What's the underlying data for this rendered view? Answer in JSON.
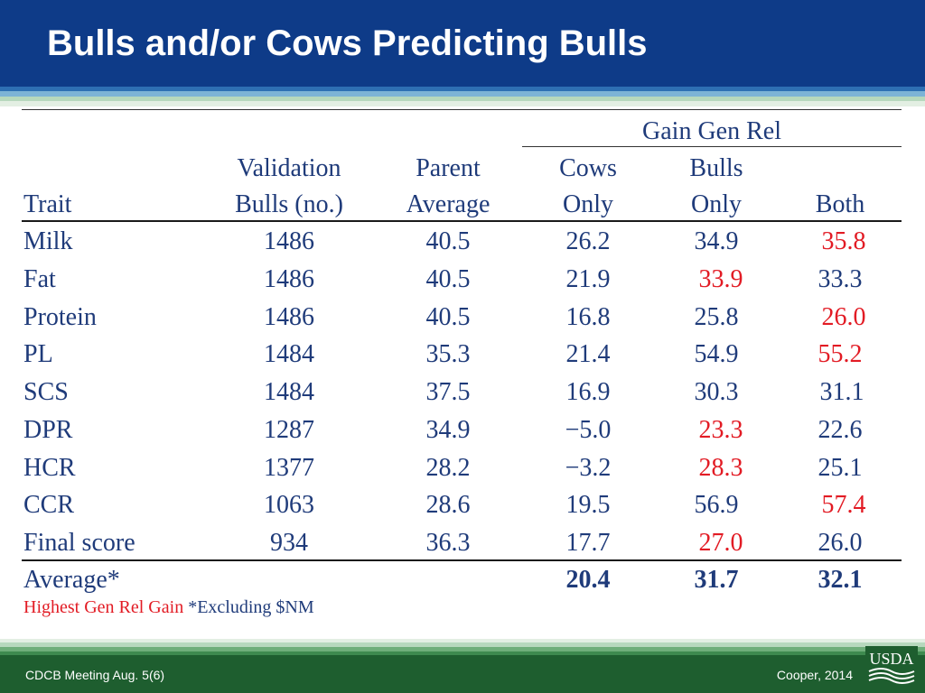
{
  "slide": {
    "title": "Bulls and/or Cows Predicting Bulls",
    "colors": {
      "title_bar": "#0e3b88",
      "highlight": "#e21b24",
      "text": "#1f3b7a",
      "footer": "#1e5e2f"
    }
  },
  "table": {
    "group_header": "Gain Gen Rel",
    "headers": {
      "trait": "Trait",
      "validation_line1": "Validation",
      "validation_line2": "Bulls (no.)",
      "parent_line1": "Parent",
      "parent_line2": "Average",
      "cows_line1": "Cows",
      "cows_line2": "Only",
      "bulls_line1": "Bulls",
      "bulls_line2": "Only",
      "both": "Both"
    },
    "rows": [
      {
        "trait": "Milk",
        "bulls": "1486",
        "parent": "40.5",
        "cows_only": "26.2",
        "bulls_only": "34.9",
        "both": "35.8",
        "highlight": "both"
      },
      {
        "trait": "Fat",
        "bulls": "1486",
        "parent": "40.5",
        "cows_only": "21.9",
        "bulls_only": "33.9",
        "both": "33.3",
        "highlight": "bulls_only"
      },
      {
        "trait": "Protein",
        "bulls": "1486",
        "parent": "40.5",
        "cows_only": "16.8",
        "bulls_only": "25.8",
        "both": "26.0",
        "highlight": "both"
      },
      {
        "trait": "PL",
        "bulls": "1484",
        "parent": "35.3",
        "cows_only": "21.4",
        "bulls_only": "54.9",
        "both": "55.2",
        "highlight": "both"
      },
      {
        "trait": "SCS",
        "bulls": "1484",
        "parent": "37.5",
        "cows_only": "16.9",
        "bulls_only": "30.3",
        "both": "31.1",
        "highlight": "none"
      },
      {
        "trait": "DPR",
        "bulls": "1287",
        "parent": "34.9",
        "cows_only": "−5.0",
        "bulls_only": "23.3",
        "both": "22.6",
        "highlight": "bulls_only"
      },
      {
        "trait": "HCR",
        "bulls": "1377",
        "parent": "28.2",
        "cows_only": "−3.2",
        "bulls_only": "28.3",
        "both": "25.1",
        "highlight": "bulls_only"
      },
      {
        "trait": "CCR",
        "bulls": "1063",
        "parent": "28.6",
        "cows_only": "19.5",
        "bulls_only": "56.9",
        "both": "57.4",
        "highlight": "both"
      },
      {
        "trait": "Final score",
        "bulls": "934",
        "parent": "36.3",
        "cows_only": "17.7",
        "bulls_only": "27.0",
        "both": "26.0",
        "highlight": "bulls_only"
      }
    ],
    "average": {
      "label": "Average*",
      "cows_only": "20.4",
      "bulls_only": "31.7",
      "both": "32.1"
    }
  },
  "note": {
    "highlight_text": "Highest Gen Rel Gain",
    "footnote": "*Excluding $NM"
  },
  "footer": {
    "left": "CDCB Meeting Aug. 5(6)",
    "right": "Cooper, 2014",
    "logo_text": "USDA"
  }
}
